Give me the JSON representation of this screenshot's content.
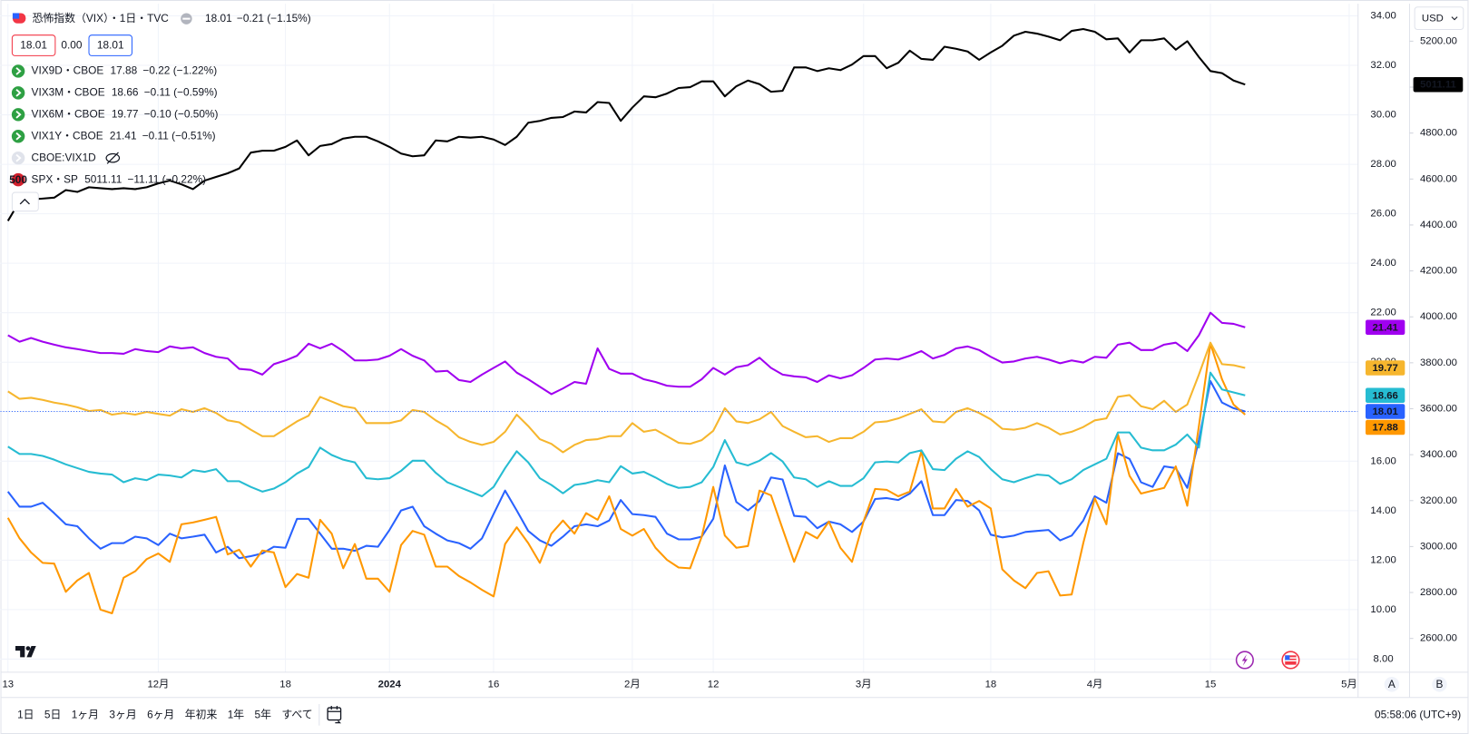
{
  "chart_data": {
    "type": "line",
    "series": [
      {
        "name": "恐怖指数（VIX）・1日・TVC",
        "color": "#2962ff",
        "change": "−0.21 (−1.15%)",
        "values": [
          14.77,
          14.16,
          14.16,
          14.32,
          13.9,
          13.45,
          13.37,
          12.88,
          12.46,
          12.69,
          12.69,
          12.95,
          12.88,
          12.61,
          13.07,
          12.88,
          12.95,
          13.03,
          12.31,
          12.54,
          12.08,
          12.16,
          12.27,
          12.54,
          12.5,
          13.67,
          13.67,
          13.07,
          12.46,
          12.46,
          12.38,
          12.58,
          12.54,
          13.22,
          14.01,
          14.16,
          13.37,
          13.07,
          12.8,
          12.69,
          12.46,
          12.88,
          13.86,
          14.81,
          14.01,
          13.18,
          12.8,
          12.58,
          12.95,
          13.37,
          13.45,
          13.37,
          13.6,
          14.43,
          13.86,
          13.82,
          13.75,
          13.07,
          12.84,
          12.84,
          12.95,
          13.67,
          15.83,
          14.35,
          14.01,
          14.39,
          15.34,
          15.26,
          13.79,
          13.75,
          13.29,
          13.56,
          13.45,
          13.14,
          13.56,
          14.47,
          14.51,
          14.43,
          14.69,
          15.19,
          13.82,
          13.82,
          14.43,
          14.39,
          14.01,
          13.03,
          12.92,
          12.99,
          13.14,
          13.18,
          13.22,
          12.8,
          12.99,
          13.6,
          14.58,
          14.32,
          16.32,
          16.09,
          15.15,
          14.96,
          15.79,
          15.72,
          14.92,
          16.85,
          19.24,
          18.37,
          18.14,
          18.01
        ]
      },
      {
        "name": "VIX9D・CBOE",
        "color": "#ff9800",
        "change": "−0.22 (−1.22%)",
        "values": [
          13.71,
          12.88,
          12.31,
          11.89,
          11.86,
          10.72,
          11.18,
          11.48,
          10.0,
          9.85,
          11.29,
          11.55,
          12.04,
          12.27,
          11.93,
          13.45,
          13.52,
          13.63,
          13.75,
          12.23,
          12.42,
          11.74,
          12.39,
          12.31,
          10.91,
          11.44,
          11.29,
          13.63,
          13.07,
          11.67,
          12.65,
          11.25,
          11.25,
          10.72,
          12.61,
          13.18,
          13.03,
          11.74,
          11.74,
          11.36,
          11.1,
          10.8,
          10.53,
          12.65,
          13.33,
          12.69,
          11.89,
          13.07,
          13.6,
          13.07,
          13.9,
          13.63,
          14.58,
          13.26,
          12.99,
          13.26,
          12.5,
          12.01,
          11.7,
          11.67,
          12.95,
          14.96,
          12.99,
          12.5,
          12.57,
          14.81,
          14.62,
          13.26,
          11.93,
          13.14,
          12.88,
          13.56,
          12.5,
          11.93,
          13.56,
          14.88,
          14.84,
          14.58,
          14.77,
          16.4,
          14.09,
          14.09,
          14.88,
          14.16,
          14.39,
          14.09,
          11.63,
          11.18,
          10.87,
          11.48,
          11.55,
          10.57,
          10.61,
          12.69,
          14.5,
          13.45,
          17.08,
          15.41,
          14.69,
          14.81,
          14.92,
          15.79,
          14.2,
          17.42,
          20.75,
          19.31,
          18.29,
          17.88
        ]
      },
      {
        "name": "VIX3M・CBOE",
        "color": "#26bcd2",
        "change": "−0.11 (−0.59%)",
        "values": [
          16.59,
          16.29,
          16.29,
          16.21,
          16.06,
          15.87,
          15.72,
          15.57,
          15.5,
          15.46,
          15.15,
          15.31,
          15.23,
          15.46,
          15.42,
          15.34,
          15.64,
          15.57,
          15.68,
          15.19,
          15.19,
          14.96,
          14.77,
          14.89,
          15.15,
          15.5,
          15.76,
          16.55,
          16.25,
          16.06,
          15.95,
          15.31,
          15.27,
          15.31,
          15.61,
          16.02,
          16.02,
          15.53,
          15.15,
          14.96,
          14.77,
          14.58,
          14.96,
          15.72,
          16.4,
          15.95,
          15.31,
          15.04,
          14.7,
          15.04,
          15.11,
          15.23,
          15.15,
          15.8,
          15.5,
          15.57,
          15.34,
          15.08,
          14.92,
          14.96,
          15.15,
          15.76,
          16.85,
          15.95,
          15.83,
          16.02,
          16.33,
          15.99,
          15.34,
          15.27,
          14.96,
          15.19,
          15.0,
          15.0,
          15.31,
          15.95,
          15.99,
          15.95,
          16.33,
          16.44,
          15.68,
          15.64,
          16.1,
          16.4,
          16.17,
          15.68,
          15.27,
          15.15,
          15.31,
          15.46,
          15.42,
          15.08,
          15.27,
          15.64,
          15.87,
          16.1,
          17.16,
          17.16,
          16.55,
          16.44,
          16.44,
          16.67,
          17.08,
          16.55,
          19.58,
          18.9,
          18.78,
          18.66
        ]
      },
      {
        "name": "VIX6M・CBOE",
        "color": "#f6b62e",
        "change": "−0.10 (−0.50%)",
        "values": [
          18.82,
          18.52,
          18.56,
          18.48,
          18.37,
          18.29,
          18.18,
          18.03,
          18.07,
          17.88,
          17.95,
          17.88,
          17.99,
          17.91,
          17.84,
          18.1,
          17.99,
          18.14,
          17.95,
          17.65,
          17.57,
          17.27,
          17.01,
          17.01,
          17.31,
          17.61,
          17.84,
          18.6,
          18.41,
          18.22,
          18.14,
          17.54,
          17.54,
          17.54,
          17.65,
          18.07,
          17.99,
          17.65,
          17.38,
          16.97,
          16.78,
          16.66,
          16.78,
          17.19,
          17.88,
          17.42,
          16.89,
          16.7,
          16.36,
          16.66,
          16.85,
          16.89,
          17.01,
          17.01,
          17.54,
          17.19,
          17.27,
          17.01,
          16.74,
          16.7,
          16.85,
          17.23,
          18.14,
          17.61,
          17.54,
          17.69,
          17.99,
          17.42,
          17.19,
          16.97,
          17.01,
          16.78,
          16.93,
          16.93,
          17.19,
          17.57,
          17.61,
          17.73,
          17.91,
          18.1,
          17.61,
          17.57,
          17.99,
          18.14,
          17.95,
          17.69,
          17.31,
          17.27,
          17.35,
          17.54,
          17.35,
          17.08,
          17.19,
          17.38,
          17.65,
          17.73,
          18.6,
          18.67,
          18.22,
          18.1,
          18.44,
          17.99,
          18.29,
          19.5,
          20.79,
          19.92,
          19.88,
          19.77
        ]
      },
      {
        "name": "VIX1Y・CBOE",
        "color": "#a000f0",
        "change": "−0.11 (−0.51%)",
        "values": [
          21.09,
          20.83,
          20.98,
          20.83,
          20.71,
          20.6,
          20.53,
          20.45,
          20.37,
          20.37,
          20.34,
          20.53,
          20.45,
          20.41,
          20.64,
          20.56,
          20.6,
          20.37,
          20.22,
          20.15,
          19.73,
          19.69,
          19.5,
          19.92,
          20.07,
          20.26,
          20.75,
          20.56,
          20.75,
          20.45,
          20.07,
          20.07,
          20.11,
          20.26,
          20.53,
          20.26,
          20.07,
          19.62,
          19.65,
          19.28,
          19.2,
          19.5,
          19.77,
          20.03,
          19.58,
          19.31,
          19.01,
          18.71,
          18.94,
          19.2,
          19.13,
          20.56,
          19.73,
          19.54,
          19.54,
          19.31,
          19.2,
          19.05,
          19.01,
          19.01,
          19.31,
          19.77,
          19.5,
          19.8,
          19.88,
          20.18,
          19.77,
          19.5,
          19.43,
          19.39,
          19.2,
          19.47,
          19.35,
          19.47,
          19.77,
          20.11,
          20.15,
          20.11,
          20.26,
          20.45,
          20.15,
          20.3,
          20.56,
          20.64,
          20.49,
          20.22,
          19.99,
          20.03,
          20.15,
          20.22,
          20.11,
          19.96,
          20.07,
          19.99,
          20.22,
          20.18,
          20.71,
          20.79,
          20.49,
          20.49,
          20.71,
          20.79,
          20.45,
          21.09,
          22.0,
          21.59,
          21.55,
          21.41
        ]
      },
      {
        "name": "SPX・SP",
        "color": "#000000",
        "axis": "y2",
        "icon_text": "500",
        "change": "−11.11 (−0.22%)",
        "values": [
          4418,
          4503,
          4511,
          4515,
          4519,
          4552,
          4544,
          4564,
          4560,
          4556,
          4560,
          4556,
          4564,
          4581,
          4593,
          4577,
          4556,
          4593,
          4609,
          4625,
          4646,
          4715,
          4723,
          4723,
          4740,
          4768,
          4703,
          4744,
          4752,
          4776,
          4784,
          4784,
          4764,
          4740,
          4711,
          4699,
          4703,
          4768,
          4764,
          4784,
          4780,
          4784,
          4772,
          4748,
          4784,
          4845,
          4853,
          4866,
          4870,
          4894,
          4890,
          4935,
          4931,
          4853,
          4911,
          4960,
          4956,
          4972,
          4996,
          5000,
          5025,
          5025,
          4960,
          5004,
          5029,
          5013,
          4980,
          4984,
          5086,
          5086,
          5070,
          5082,
          5074,
          5098,
          5135,
          5135,
          5082,
          5106,
          5159,
          5123,
          5119,
          5176,
          5167,
          5155,
          5119,
          5151,
          5180,
          5224,
          5241,
          5233,
          5220,
          5204,
          5245,
          5253,
          5241,
          5208,
          5212,
          5151,
          5204,
          5204,
          5212,
          5163,
          5200,
          5131,
          5070,
          5061,
          5029,
          5011.11
        ]
      }
    ],
    "hidden_series": [
      "CBOE:VIX1D"
    ],
    "xlim": [
      -0.65,
      116.77
    ],
    "xticks": [
      {
        "value": 0,
        "label": "13"
      },
      {
        "value": 13,
        "label": "12月"
      },
      {
        "value": 24,
        "label": "18"
      },
      {
        "value": 33,
        "label": "2024"
      },
      {
        "value": 42,
        "label": "16"
      },
      {
        "value": 54,
        "label": "2月"
      },
      {
        "value": 61,
        "label": "12"
      },
      {
        "value": 74,
        "label": "3月"
      },
      {
        "value": 85,
        "label": "18"
      },
      {
        "value": 94,
        "label": "4月"
      },
      {
        "value": 104,
        "label": "15"
      },
      {
        "value": 116,
        "label": "5月"
      }
    ],
    "ylim": [
      7.47,
      34.49
    ],
    "yticks": [
      {
        "value": 8,
        "label": "8.00"
      },
      {
        "value": 10,
        "label": "10.00"
      },
      {
        "value": 12,
        "label": "12.00"
      },
      {
        "value": 14,
        "label": "14.00"
      },
      {
        "value": 16,
        "label": "16.00"
      },
      {
        "value": 18,
        "label": "18.00"
      },
      {
        "value": 20,
        "label": "20.00"
      },
      {
        "value": 22,
        "label": "22.00"
      },
      {
        "value": 24,
        "label": "24.00"
      },
      {
        "value": 26,
        "label": "26.00"
      },
      {
        "value": 28,
        "label": "28.00"
      },
      {
        "value": 30,
        "label": "30.00"
      },
      {
        "value": 32,
        "label": "32.00"
      },
      {
        "value": 34,
        "label": "34.00"
      }
    ],
    "y2lim": [
      2453,
      5363
    ],
    "y2ticks": [
      {
        "value": 2600,
        "label": "2600.00"
      },
      {
        "value": 2800,
        "label": "2800.00"
      },
      {
        "value": 3000,
        "label": "3000.00"
      },
      {
        "value": 3200,
        "label": "3200.00"
      },
      {
        "value": 3400,
        "label": "3400.00"
      },
      {
        "value": 3600,
        "label": "3600.00"
      },
      {
        "value": 3800,
        "label": "3800.00"
      },
      {
        "value": 4000,
        "label": "4000.00"
      },
      {
        "value": 4200,
        "label": "4200.00"
      },
      {
        "value": 4400,
        "label": "4400.00"
      },
      {
        "value": 4600,
        "label": "4600.00"
      },
      {
        "value": 4800,
        "label": "4800.00"
      },
      {
        "value": 5000,
        "label": "5000.00"
      },
      {
        "value": 5200,
        "label": "5200.00"
      }
    ],
    "grid": true
  },
  "header": {
    "bid": "18.01",
    "spread": "0.00",
    "ask": "18.01"
  },
  "currency": "USD",
  "scale_buttons": [
    "A",
    "B"
  ],
  "toolbar": {
    "ranges": [
      "1日",
      "5日",
      "1ヶ月",
      "3ヶ月",
      "6ヶ月",
      "年初来",
      "1年",
      "5年",
      "すべて"
    ],
    "time": "05:58:06 (UTC+9)"
  }
}
